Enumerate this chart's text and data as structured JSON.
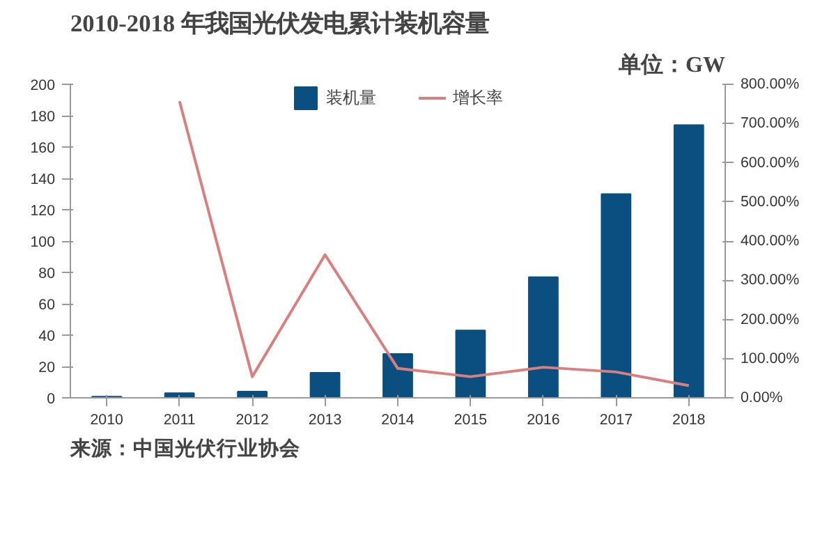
{
  "chart_data": {
    "type": "bar",
    "title": "2010-2018 年我国光伏发电累计装机容量",
    "subtitle": "单位：GW",
    "categories": [
      "2010",
      "2011",
      "2012",
      "2013",
      "2014",
      "2015",
      "2016",
      "2017",
      "2018"
    ],
    "series": [
      {
        "name": "装机量",
        "color": "#0a4f80",
        "values": [
          0.8,
          3,
          4,
          16,
          28,
          43,
          77,
          130,
          174
        ]
      },
      {
        "name": "增长率",
        "type": "line",
        "axis": "y2",
        "color": "#d9807f",
        "values": [
          null,
          757,
          54,
          365,
          75,
          54,
          78,
          66,
          31
        ]
      }
    ],
    "ylim": [
      0,
      200
    ],
    "yticks": [
      0,
      20,
      40,
      60,
      80,
      100,
      120,
      140,
      160,
      180,
      200
    ],
    "y2lim": [
      0,
      800
    ],
    "y2ticks": [
      {
        "value": 0,
        "label": "0.00%"
      },
      {
        "value": 100,
        "label": "100.00%"
      },
      {
        "value": 200,
        "label": "200.00%"
      },
      {
        "value": 300,
        "label": "300.00%"
      },
      {
        "value": 400,
        "label": "400.00%"
      },
      {
        "value": 500,
        "label": "500.00%"
      },
      {
        "value": 600,
        "label": "600.00%"
      },
      {
        "value": 700,
        "label": "700.00%"
      },
      {
        "value": 800,
        "label": "800.00%"
      }
    ],
    "grid": false,
    "legend": "top",
    "line_style": "solid",
    "marker": "none",
    "annotations": [
      "来源：中国光伏行业协会"
    ]
  }
}
